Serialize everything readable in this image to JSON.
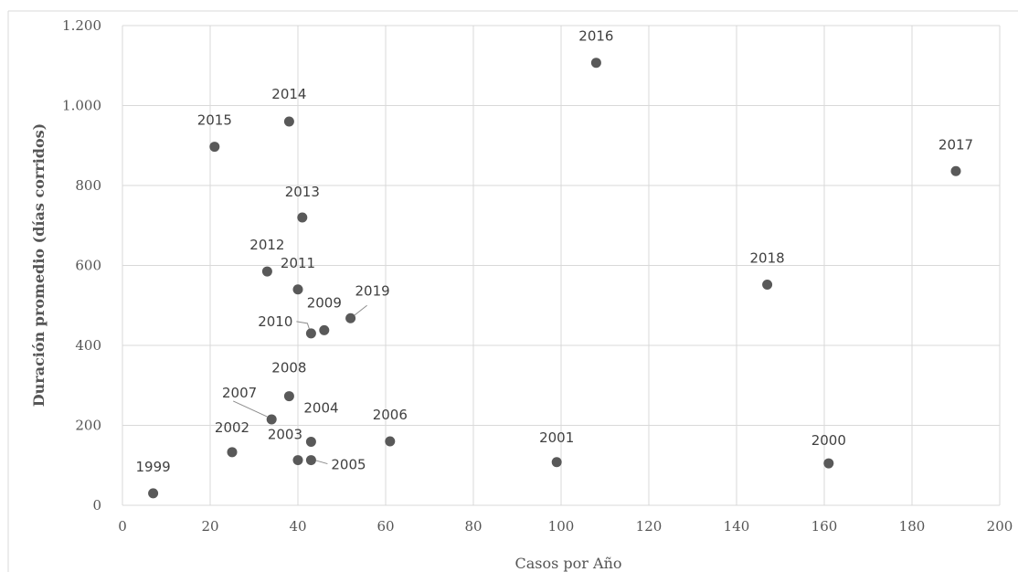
{
  "chart_data": {
    "type": "scatter",
    "xlabel": "Casos por Año",
    "ylabel": "Duración promedio (días corridos)",
    "xlim": [
      0,
      200
    ],
    "ylim": [
      0,
      1200
    ],
    "x_ticks": [
      0,
      20,
      40,
      60,
      80,
      100,
      120,
      140,
      160,
      180,
      200
    ],
    "y_ticks": [
      0,
      200,
      400,
      600,
      800,
      1000,
      1200
    ],
    "x_tick_labels": [
      "0",
      "20",
      "40",
      "60",
      "80",
      "100",
      "120",
      "140",
      "160",
      "180",
      "200"
    ],
    "y_tick_labels": [
      "0",
      "200",
      "400",
      "600",
      "800",
      "1.000",
      "1.200"
    ],
    "grid": true,
    "legend": "none",
    "marker_color": "#595959",
    "points": [
      {
        "label": "1999",
        "x": 7,
        "y": 30
      },
      {
        "label": "2000",
        "x": 161,
        "y": 105
      },
      {
        "label": "2001",
        "x": 99,
        "y": 108
      },
      {
        "label": "2002",
        "x": 25,
        "y": 133
      },
      {
        "label": "2003",
        "x": 40,
        "y": 113
      },
      {
        "label": "2004",
        "x": 43,
        "y": 159
      },
      {
        "label": "2005",
        "x": 43,
        "y": 113
      },
      {
        "label": "2006",
        "x": 61,
        "y": 160
      },
      {
        "label": "2007",
        "x": 34,
        "y": 215
      },
      {
        "label": "2008",
        "x": 38,
        "y": 273
      },
      {
        "label": "2009",
        "x": 46,
        "y": 438
      },
      {
        "label": "2010",
        "x": 43,
        "y": 430
      },
      {
        "label": "2011",
        "x": 40,
        "y": 540
      },
      {
        "label": "2012",
        "x": 33,
        "y": 585
      },
      {
        "label": "2013",
        "x": 41,
        "y": 720
      },
      {
        "label": "2014",
        "x": 38,
        "y": 960
      },
      {
        "label": "2015",
        "x": 21,
        "y": 897
      },
      {
        "label": "2016",
        "x": 108,
        "y": 1107
      },
      {
        "label": "2017",
        "x": 190,
        "y": 836
      },
      {
        "label": "2018",
        "x": 147,
        "y": 552
      },
      {
        "label": "2019",
        "x": 52,
        "y": 468
      }
    ]
  }
}
